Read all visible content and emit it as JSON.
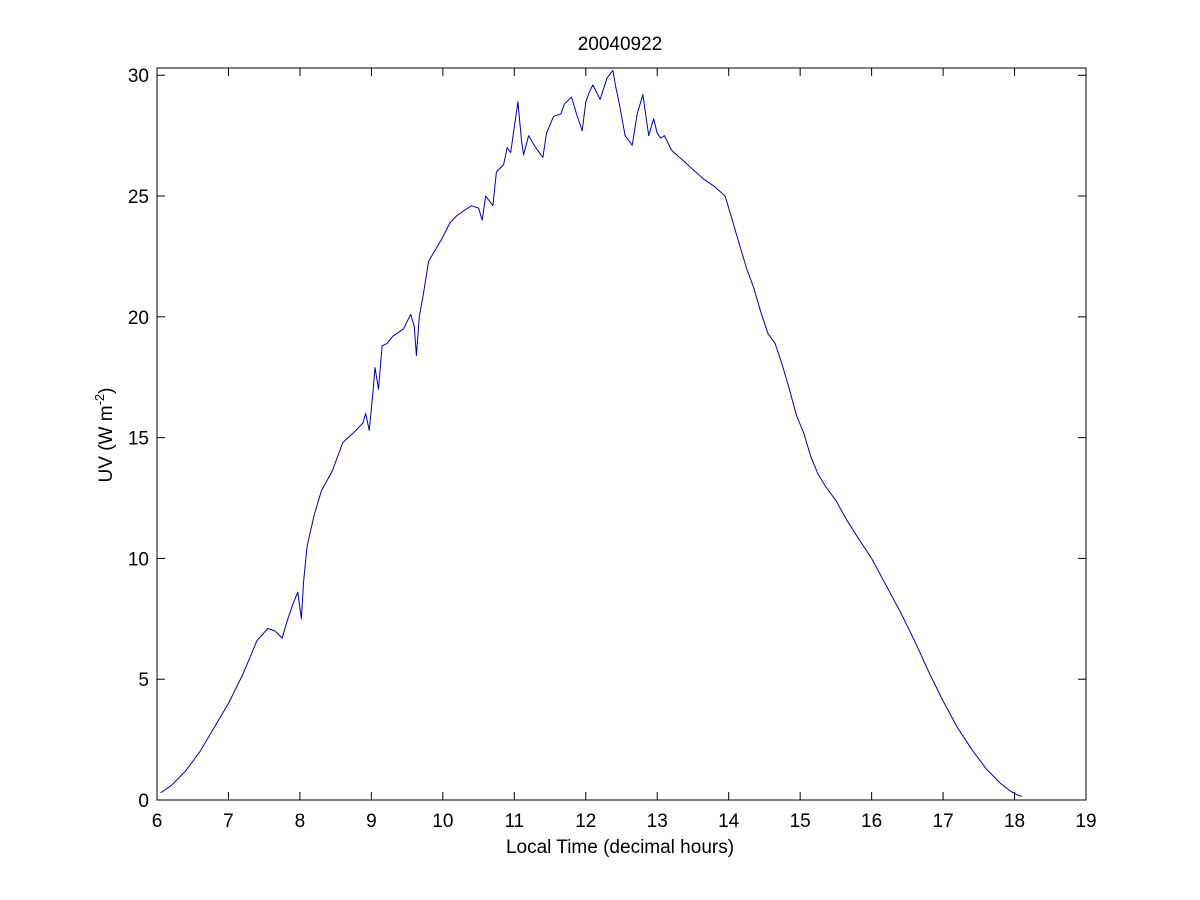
{
  "chart_data": {
    "type": "line",
    "title": "20040922",
    "xlabel": "Local Time (decimal hours)",
    "ylabel": {
      "prefix": "UV (W m",
      "superscript": "-2",
      "suffix": ")"
    },
    "xlim": [
      6,
      19
    ],
    "ylim": [
      0,
      30.3
    ],
    "xticks": [
      6,
      7,
      8,
      9,
      10,
      11,
      12,
      13,
      14,
      15,
      16,
      17,
      18,
      19
    ],
    "yticks": [
      0,
      5,
      10,
      15,
      20,
      25,
      30
    ],
    "grid": false,
    "box": true,
    "line_color": "#0000aa",
    "series": [
      {
        "name": "",
        "x": [
          6.05,
          6.2,
          6.4,
          6.6,
          6.8,
          7.0,
          7.2,
          7.4,
          7.55,
          7.65,
          7.75,
          7.82,
          7.9,
          7.97,
          8.02,
          8.05,
          8.1,
          8.2,
          8.3,
          8.45,
          8.6,
          8.75,
          8.88,
          8.92,
          8.97,
          9.02,
          9.05,
          9.1,
          9.15,
          9.22,
          9.3,
          9.45,
          9.55,
          9.6,
          9.63,
          9.67,
          9.73,
          9.8,
          9.9,
          10.0,
          10.1,
          10.2,
          10.3,
          10.4,
          10.5,
          10.55,
          10.6,
          10.7,
          10.75,
          10.85,
          10.9,
          10.95,
          11.05,
          11.1,
          11.13,
          11.2,
          11.3,
          11.4,
          11.45,
          11.55,
          11.65,
          11.7,
          11.8,
          11.87,
          11.95,
          12.0,
          12.05,
          12.1,
          12.2,
          12.3,
          12.38,
          12.42,
          12.47,
          12.55,
          12.65,
          12.72,
          12.8,
          12.88,
          12.95,
          13.0,
          13.05,
          13.1,
          13.2,
          13.35,
          13.5,
          13.65,
          13.8,
          13.95,
          14.05,
          14.15,
          14.25,
          14.35,
          14.45,
          14.55,
          14.65,
          14.75,
          14.85,
          14.95,
          15.05,
          15.15,
          15.25,
          15.35,
          15.5,
          15.65,
          15.8,
          16.0,
          16.2,
          16.4,
          16.6,
          16.8,
          17.0,
          17.2,
          17.4,
          17.6,
          17.8,
          17.95,
          18.05,
          18.1
        ],
        "y": [
          0.3,
          0.6,
          1.2,
          2.0,
          3.0,
          4.0,
          5.2,
          6.6,
          7.1,
          7.0,
          6.7,
          7.4,
          8.1,
          8.6,
          7.5,
          9.0,
          10.5,
          11.8,
          12.8,
          13.6,
          14.8,
          15.2,
          15.6,
          16.0,
          15.3,
          16.8,
          17.9,
          17.0,
          18.8,
          18.9,
          19.2,
          19.5,
          20.1,
          19.6,
          18.4,
          20.0,
          21.0,
          22.3,
          22.8,
          23.3,
          23.9,
          24.2,
          24.4,
          24.6,
          24.5,
          24.0,
          25.0,
          24.6,
          26.0,
          26.3,
          27.0,
          26.8,
          28.9,
          27.3,
          26.7,
          27.5,
          27.0,
          26.6,
          27.6,
          28.3,
          28.4,
          28.8,
          29.1,
          28.4,
          27.7,
          28.9,
          29.3,
          29.6,
          29.0,
          29.9,
          30.2,
          29.5,
          28.8,
          27.5,
          27.1,
          28.4,
          29.2,
          27.5,
          28.2,
          27.6,
          27.4,
          27.5,
          26.9,
          26.5,
          26.1,
          25.7,
          25.4,
          25.0,
          24.0,
          23.0,
          22.0,
          21.2,
          20.2,
          19.3,
          18.9,
          18.0,
          17.0,
          15.9,
          15.2,
          14.2,
          13.5,
          13.0,
          12.4,
          11.6,
          10.9,
          10.0,
          8.9,
          7.8,
          6.6,
          5.3,
          4.1,
          3.0,
          2.1,
          1.3,
          0.7,
          0.35,
          0.2,
          0.15
        ]
      }
    ]
  }
}
